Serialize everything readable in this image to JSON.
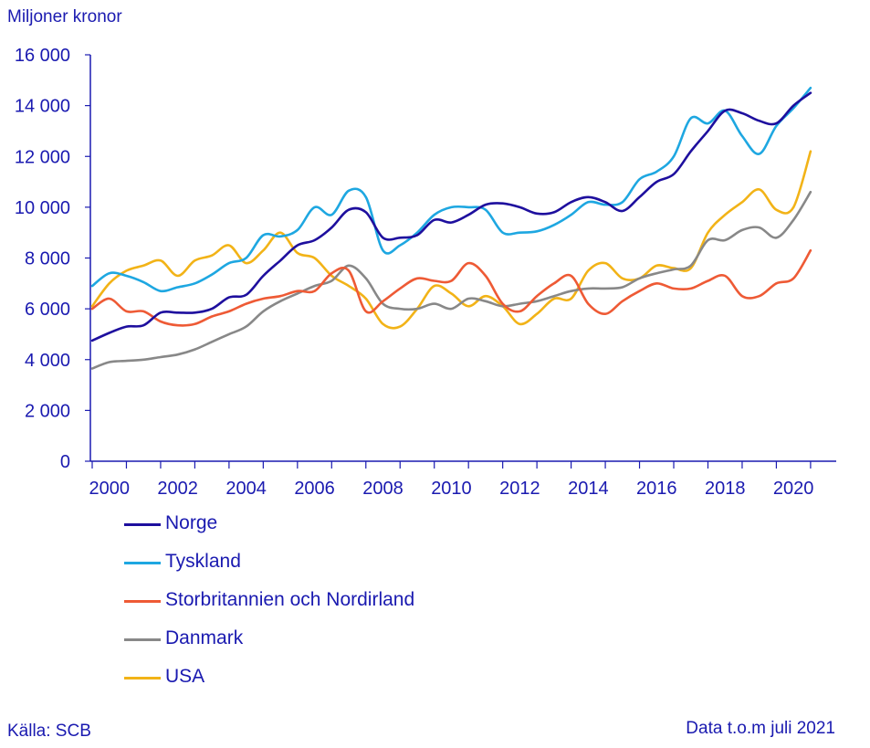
{
  "note": "Data t.o.m juli 2021",
  "source": "Källa: SCB",
  "chart_data": {
    "type": "line",
    "title": "",
    "xlabel": "",
    "ylabel": "Miljoner kronor",
    "xlim": [
      2000,
      2021.75
    ],
    "ylim": [
      0,
      16000
    ],
    "yticks": [
      0,
      2000,
      4000,
      6000,
      8000,
      10000,
      12000,
      14000,
      16000
    ],
    "ytick_labels": [
      "0",
      "2 000",
      "4 000",
      "6 000",
      "8 000",
      "10 000",
      "12 000",
      "14 000",
      "16 000"
    ],
    "xticks": [
      2000,
      2002,
      2004,
      2006,
      2008,
      2010,
      2012,
      2014,
      2016,
      2018,
      2020
    ],
    "xtick_labels": [
      "2000",
      "2002",
      "2004",
      "2006",
      "2008",
      "2010",
      "2012",
      "2014",
      "2016",
      "2018",
      "2020"
    ],
    "grid": false,
    "legend_position": "bottom-left",
    "series": [
      {
        "name": "Norge",
        "color": "#1e0f9e",
        "points": [
          [
            2000,
            4750
          ],
          [
            2000.5,
            5050
          ],
          [
            2001,
            5300
          ],
          [
            2001.5,
            5350
          ],
          [
            2002,
            5850
          ],
          [
            2002.5,
            5850
          ],
          [
            2003,
            5850
          ],
          [
            2003.5,
            6000
          ],
          [
            2004,
            6450
          ],
          [
            2004.5,
            6550
          ],
          [
            2005,
            7300
          ],
          [
            2005.5,
            7900
          ],
          [
            2006,
            8500
          ],
          [
            2006.5,
            8700
          ],
          [
            2007,
            9200
          ],
          [
            2007.5,
            9900
          ],
          [
            2008,
            9800
          ],
          [
            2008.5,
            8800
          ],
          [
            2009,
            8800
          ],
          [
            2009.5,
            8900
          ],
          [
            2010,
            9500
          ],
          [
            2010.5,
            9400
          ],
          [
            2011,
            9700
          ],
          [
            2011.5,
            10100
          ],
          [
            2012,
            10150
          ],
          [
            2012.5,
            10000
          ],
          [
            2013,
            9750
          ],
          [
            2013.5,
            9800
          ],
          [
            2014,
            10200
          ],
          [
            2014.5,
            10400
          ],
          [
            2015,
            10200
          ],
          [
            2015.5,
            9850
          ],
          [
            2016,
            10400
          ],
          [
            2016.5,
            11000
          ],
          [
            2017,
            11300
          ],
          [
            2017.5,
            12200
          ],
          [
            2018,
            13000
          ],
          [
            2018.5,
            13800
          ],
          [
            2019,
            13700
          ],
          [
            2019.5,
            13400
          ],
          [
            2020,
            13300
          ],
          [
            2020.5,
            14000
          ],
          [
            2021,
            14500
          ]
        ]
      },
      {
        "name": "Tyskland",
        "color": "#1ea7e1",
        "points": [
          [
            2000,
            6900
          ],
          [
            2000.5,
            7400
          ],
          [
            2001,
            7300
          ],
          [
            2001.5,
            7050
          ],
          [
            2002,
            6700
          ],
          [
            2002.5,
            6850
          ],
          [
            2003,
            7000
          ],
          [
            2003.5,
            7350
          ],
          [
            2004,
            7800
          ],
          [
            2004.5,
            8000
          ],
          [
            2005,
            8900
          ],
          [
            2005.5,
            8850
          ],
          [
            2006,
            9100
          ],
          [
            2006.5,
            10000
          ],
          [
            2007,
            9700
          ],
          [
            2007.5,
            10650
          ],
          [
            2008,
            10400
          ],
          [
            2008.5,
            8300
          ],
          [
            2009,
            8500
          ],
          [
            2009.5,
            9000
          ],
          [
            2010,
            9700
          ],
          [
            2010.5,
            10000
          ],
          [
            2011,
            10000
          ],
          [
            2011.5,
            9900
          ],
          [
            2012,
            9000
          ],
          [
            2012.5,
            9000
          ],
          [
            2013,
            9050
          ],
          [
            2013.5,
            9300
          ],
          [
            2014,
            9700
          ],
          [
            2014.5,
            10200
          ],
          [
            2015,
            10100
          ],
          [
            2015.5,
            10200
          ],
          [
            2016,
            11100
          ],
          [
            2016.5,
            11400
          ],
          [
            2017,
            12000
          ],
          [
            2017.5,
            13500
          ],
          [
            2018,
            13300
          ],
          [
            2018.5,
            13800
          ],
          [
            2019,
            12800
          ],
          [
            2019.5,
            12100
          ],
          [
            2020,
            13200
          ],
          [
            2020.5,
            13900
          ],
          [
            2021,
            14700
          ]
        ]
      },
      {
        "name": "Storbritannien och Nordirland",
        "color": "#ee5a35",
        "points": [
          [
            2000,
            6000
          ],
          [
            2000.5,
            6400
          ],
          [
            2001,
            5900
          ],
          [
            2001.5,
            5900
          ],
          [
            2002,
            5500
          ],
          [
            2002.5,
            5350
          ],
          [
            2003,
            5400
          ],
          [
            2003.5,
            5700
          ],
          [
            2004,
            5900
          ],
          [
            2004.5,
            6200
          ],
          [
            2005,
            6400
          ],
          [
            2005.5,
            6500
          ],
          [
            2006,
            6700
          ],
          [
            2006.5,
            6700
          ],
          [
            2007,
            7400
          ],
          [
            2007.5,
            7500
          ],
          [
            2008,
            5900
          ],
          [
            2008.5,
            6300
          ],
          [
            2009,
            6800
          ],
          [
            2009.5,
            7200
          ],
          [
            2010,
            7100
          ],
          [
            2010.5,
            7100
          ],
          [
            2011,
            7800
          ],
          [
            2011.5,
            7300
          ],
          [
            2012,
            6200
          ],
          [
            2012.5,
            5900
          ],
          [
            2013,
            6500
          ],
          [
            2013.5,
            7000
          ],
          [
            2014,
            7300
          ],
          [
            2014.5,
            6200
          ],
          [
            2015,
            5800
          ],
          [
            2015.5,
            6300
          ],
          [
            2016,
            6700
          ],
          [
            2016.5,
            7000
          ],
          [
            2017,
            6800
          ],
          [
            2017.5,
            6800
          ],
          [
            2018,
            7100
          ],
          [
            2018.5,
            7300
          ],
          [
            2019,
            6500
          ],
          [
            2019.5,
            6500
          ],
          [
            2020,
            7000
          ],
          [
            2020.5,
            7200
          ],
          [
            2021,
            8300
          ]
        ]
      },
      {
        "name": "Danmark",
        "color": "#888888",
        "points": [
          [
            2000,
            3650
          ],
          [
            2000.5,
            3900
          ],
          [
            2001,
            3950
          ],
          [
            2001.5,
            4000
          ],
          [
            2002,
            4100
          ],
          [
            2002.5,
            4200
          ],
          [
            2003,
            4400
          ],
          [
            2003.5,
            4700
          ],
          [
            2004,
            5000
          ],
          [
            2004.5,
            5300
          ],
          [
            2005,
            5900
          ],
          [
            2005.5,
            6300
          ],
          [
            2006,
            6600
          ],
          [
            2006.5,
            6900
          ],
          [
            2007,
            7100
          ],
          [
            2007.5,
            7700
          ],
          [
            2008,
            7200
          ],
          [
            2008.5,
            6200
          ],
          [
            2009,
            6000
          ],
          [
            2009.5,
            6000
          ],
          [
            2010,
            6200
          ],
          [
            2010.5,
            6000
          ],
          [
            2011,
            6400
          ],
          [
            2011.5,
            6300
          ],
          [
            2012,
            6100
          ],
          [
            2012.5,
            6200
          ],
          [
            2013,
            6300
          ],
          [
            2013.5,
            6500
          ],
          [
            2014,
            6700
          ],
          [
            2014.5,
            6800
          ],
          [
            2015,
            6800
          ],
          [
            2015.5,
            6850
          ],
          [
            2016,
            7200
          ],
          [
            2016.5,
            7400
          ],
          [
            2017,
            7550
          ],
          [
            2017.5,
            7700
          ],
          [
            2018,
            8700
          ],
          [
            2018.5,
            8700
          ],
          [
            2019,
            9100
          ],
          [
            2019.5,
            9200
          ],
          [
            2020,
            8800
          ],
          [
            2020.5,
            9500
          ],
          [
            2021,
            10600
          ]
        ]
      },
      {
        "name": "USA",
        "color": "#f2b317",
        "points": [
          [
            2000,
            6100
          ],
          [
            2000.5,
            7000
          ],
          [
            2001,
            7500
          ],
          [
            2001.5,
            7700
          ],
          [
            2002,
            7900
          ],
          [
            2002.5,
            7300
          ],
          [
            2003,
            7900
          ],
          [
            2003.5,
            8100
          ],
          [
            2004,
            8500
          ],
          [
            2004.5,
            7800
          ],
          [
            2005,
            8300
          ],
          [
            2005.5,
            9000
          ],
          [
            2006,
            8200
          ],
          [
            2006.5,
            8000
          ],
          [
            2007,
            7300
          ],
          [
            2007.5,
            6900
          ],
          [
            2008,
            6400
          ],
          [
            2008.5,
            5400
          ],
          [
            2009,
            5300
          ],
          [
            2009.5,
            6000
          ],
          [
            2010,
            6900
          ],
          [
            2010.5,
            6600
          ],
          [
            2011,
            6100
          ],
          [
            2011.5,
            6500
          ],
          [
            2012,
            6100
          ],
          [
            2012.5,
            5400
          ],
          [
            2013,
            5800
          ],
          [
            2013.5,
            6400
          ],
          [
            2014,
            6400
          ],
          [
            2014.5,
            7500
          ],
          [
            2015,
            7800
          ],
          [
            2015.5,
            7200
          ],
          [
            2016,
            7200
          ],
          [
            2016.5,
            7700
          ],
          [
            2017,
            7600
          ],
          [
            2017.5,
            7600
          ],
          [
            2018,
            9000
          ],
          [
            2018.5,
            9700
          ],
          [
            2019,
            10200
          ],
          [
            2019.5,
            10700
          ],
          [
            2020,
            9900
          ],
          [
            2020.5,
            10000
          ],
          [
            2021,
            12200
          ]
        ]
      }
    ]
  }
}
